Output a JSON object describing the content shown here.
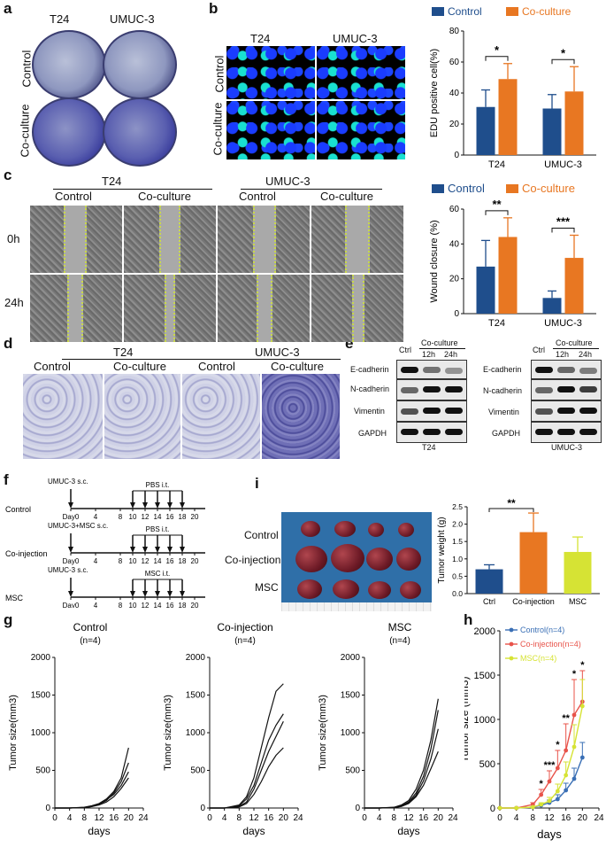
{
  "letters": {
    "a": "a",
    "b": "b",
    "c": "c",
    "d": "d",
    "e": "e",
    "f": "f",
    "g": "g",
    "h": "h",
    "i": "i"
  },
  "colors": {
    "control": "#1f4e8c",
    "coculture": "#e87722",
    "msc": "#d6e334",
    "coinjection": "#e8534a",
    "hcontrol": "#3a6fb5"
  },
  "panel_a": {
    "col1": "T24",
    "col2": "UMUC-3",
    "row1": "Control",
    "row2": "Co-culture"
  },
  "panel_b": {
    "col1": "T24",
    "col2": "UMUC-3",
    "row1": "Control",
    "row2": "Co-culture"
  },
  "panel_c": {
    "group1": "T24",
    "group2": "UMUC-3",
    "sub1": "Control",
    "sub2": "Co-culture",
    "sub3": "Control",
    "sub4": "Co-culture",
    "row1": "0h",
    "row2": "24h"
  },
  "panel_d": {
    "group1": "T24",
    "group2": "UMUC-3",
    "sub1": "Control",
    "sub2": "Co-culture",
    "sub3": "Control",
    "sub4": "Co-culture"
  },
  "panel_e": {
    "left": {
      "ctrl": "Ctrl",
      "coculture": "Co-culture",
      "t12": "12h",
      "t24": "24h",
      "cell": "T24"
    },
    "right": {
      "ctrl": "Ctrl",
      "coculture": "Co-culture",
      "t12": "12h",
      "t24": "24h",
      "cell": "UMUC-3"
    },
    "proteins": [
      "E-cadherin",
      "N-cadherin",
      "Vimentin",
      "GAPDH"
    ]
  },
  "panel_f": {
    "rows": [
      {
        "label": "Control",
        "top": "UMUC-3 s.c.",
        "inj": "PBS i.t."
      },
      {
        "label": "Co-injection",
        "top": "UMUC-3+MSC s.c.",
        "inj": "PBS i.t."
      },
      {
        "label": "MSC",
        "top": "UMUC-3 s.c.",
        "inj": "MSC i.t."
      }
    ],
    "ticks": [
      "Day0",
      "4",
      "8",
      "10",
      "12",
      "14",
      "16",
      "18",
      "20"
    ]
  },
  "panel_i": {
    "rows": [
      "Control",
      "Co-injection",
      "MSC"
    ]
  },
  "chart_data": [
    {
      "type": "bar",
      "id": "b_edu",
      "categories": [
        "T24",
        "UMUC-3"
      ],
      "series": [
        {
          "name": "Control",
          "values": [
            31,
            30
          ],
          "err": [
            11,
            9
          ]
        },
        {
          "name": "Co-culture",
          "values": [
            49,
            41
          ],
          "err": [
            10,
            16
          ]
        }
      ],
      "ylabel": "EDU positive cell(%)",
      "ylim": [
        0,
        80
      ],
      "yticks": [
        0,
        20,
        40,
        60,
        80
      ],
      "sig": [
        "*",
        "*"
      ],
      "legend": [
        "Control",
        "Co-culture"
      ]
    },
    {
      "type": "bar",
      "id": "c_wound",
      "categories": [
        "T24",
        "UMUC-3"
      ],
      "series": [
        {
          "name": "Control",
          "values": [
            27,
            9
          ],
          "err": [
            15,
            4
          ]
        },
        {
          "name": "Co-culture",
          "values": [
            44,
            32
          ],
          "err": [
            11,
            13
          ]
        }
      ],
      "ylabel": "Wound closure (%)",
      "ylim": [
        0,
        60
      ],
      "yticks": [
        0,
        20,
        40,
        60
      ],
      "sig": [
        "**",
        "***"
      ],
      "legend": [
        "Control",
        "Co-culture"
      ]
    },
    {
      "type": "bar",
      "id": "i_weight",
      "categories": [
        "Ctrl",
        "Co-injection",
        "MSC"
      ],
      "values": [
        0.7,
        1.77,
        1.2
      ],
      "err": [
        0.13,
        0.55,
        0.43
      ],
      "ylabel": "Tumor weight (g)",
      "ylim": [
        0,
        2.5
      ],
      "yticks": [
        "0.0",
        "0.5",
        "1.0",
        "1.5",
        "2.0",
        "2.5"
      ],
      "sig": "**"
    },
    {
      "type": "line",
      "id": "g_control",
      "title": "Control",
      "subtitle": "(n=4)",
      "x": [
        0,
        4,
        8,
        10,
        12,
        14,
        16,
        18,
        20
      ],
      "series": [
        [
          0,
          0,
          10,
          30,
          60,
          120,
          220,
          400,
          800
        ],
        [
          0,
          0,
          5,
          20,
          50,
          100,
          200,
          350,
          600
        ],
        [
          0,
          0,
          8,
          25,
          55,
          110,
          180,
          300,
          480
        ],
        [
          0,
          0,
          6,
          18,
          40,
          80,
          150,
          260,
          400
        ]
      ],
      "xlabel": "days",
      "ylabel": "Tumor size(mm3)",
      "ylim": [
        0,
        2000
      ],
      "xlim": [
        0,
        24
      ]
    },
    {
      "type": "line",
      "id": "g_coinj",
      "title": "Co-injection",
      "subtitle": "(n=4)",
      "x": [
        0,
        4,
        8,
        10,
        12,
        14,
        16,
        18,
        20
      ],
      "series": [
        [
          0,
          0,
          40,
          150,
          400,
          800,
          1200,
          1550,
          1650
        ],
        [
          0,
          0,
          30,
          120,
          300,
          600,
          900,
          1100,
          1250
        ],
        [
          0,
          0,
          20,
          80,
          250,
          500,
          750,
          950,
          1150
        ],
        [
          0,
          0,
          15,
          60,
          180,
          350,
          550,
          700,
          800
        ]
      ],
      "xlabel": "days",
      "ylabel": "Tumor size(mm3)",
      "ylim": [
        0,
        2000
      ],
      "xlim": [
        0,
        24
      ]
    },
    {
      "type": "line",
      "id": "g_msc",
      "title": "MSC",
      "subtitle": "(n=4)",
      "x": [
        0,
        4,
        8,
        10,
        12,
        14,
        16,
        18,
        20
      ],
      "series": [
        [
          0,
          0,
          10,
          40,
          100,
          250,
          500,
          900,
          1450
        ],
        [
          0,
          0,
          8,
          30,
          80,
          200,
          420,
          780,
          1300
        ],
        [
          0,
          0,
          6,
          25,
          70,
          170,
          360,
          650,
          1050
        ],
        [
          0,
          0,
          5,
          20,
          60,
          150,
          300,
          520,
          750
        ]
      ],
      "xlabel": "days",
      "ylabel": "Tumor size(mm3)",
      "ylim": [
        0,
        2000
      ],
      "xlim": [
        0,
        24
      ]
    },
    {
      "type": "line",
      "id": "h_mean",
      "x": [
        0,
        4,
        8,
        10,
        12,
        14,
        16,
        18,
        20
      ],
      "series": [
        {
          "name": "Control(n=4)",
          "values": [
            0,
            0,
            10,
            30,
            60,
            100,
            200,
            330,
            570
          ],
          "err": [
            0,
            0,
            5,
            15,
            30,
            50,
            80,
            120,
            170
          ]
        },
        {
          "name": "Co-injection(n=4)",
          "values": [
            0,
            0,
            40,
            150,
            300,
            450,
            650,
            1050,
            1200
          ],
          "err": [
            0,
            0,
            20,
            60,
            120,
            200,
            300,
            400,
            350
          ]
        },
        {
          "name": "MSC(n=4)",
          "values": [
            0,
            0,
            10,
            40,
            80,
            190,
            370,
            690,
            1150
          ],
          "err": [
            0,
            0,
            5,
            20,
            40,
            80,
            150,
            250,
            300
          ]
        }
      ],
      "sig": [
        [
          "*",
          10
        ],
        [
          "***",
          12
        ],
        [
          "*",
          14
        ],
        [
          "**",
          16
        ],
        [
          "*",
          18
        ],
        [
          "*",
          20
        ]
      ],
      "xlabel": "days",
      "ylabel": "Tumor size (mm3)",
      "ylim": [
        0,
        2000
      ],
      "xlim": [
        0,
        24
      ],
      "xticks": [
        0,
        4,
        8,
        12,
        16,
        20,
        24
      ],
      "yticks": [
        0,
        500,
        1000,
        1500,
        2000
      ]
    }
  ]
}
